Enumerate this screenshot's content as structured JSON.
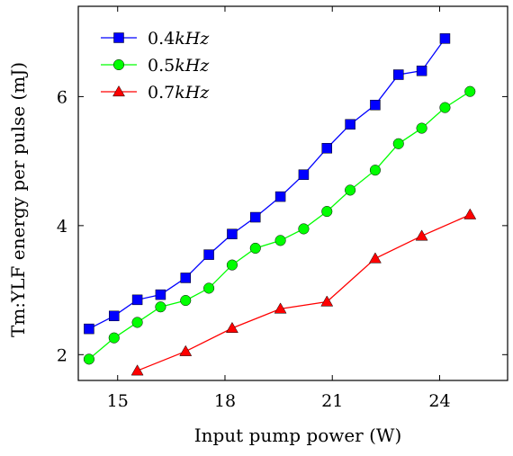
{
  "chart_data": {
    "type": "line",
    "xlabel": "Input pump power (W)",
    "ylabel": "Tm:YLF energy per pulse (mJ)",
    "xlim": [
      13.9,
      25.9
    ],
    "ylim": [
      1.6,
      7.4
    ],
    "xticks": [
      15,
      18,
      21,
      24
    ],
    "yticks": [
      2,
      4,
      6
    ],
    "xtick_labels": [
      "15",
      "18",
      "21",
      "24"
    ],
    "ytick_labels": [
      "2",
      "4",
      "6"
    ],
    "grid": false,
    "legend_position": "top-left",
    "series": [
      {
        "name": "0.4kHz",
        "color": "#0000ff",
        "marker": "square",
        "x": [
          14.2,
          14.9,
          15.55,
          16.2,
          16.9,
          17.55,
          18.2,
          18.85,
          19.55,
          20.2,
          20.85,
          21.5,
          22.2,
          22.85,
          23.5,
          24.15
        ],
        "y": [
          2.4,
          2.6,
          2.85,
          2.93,
          3.19,
          3.55,
          3.87,
          4.13,
          4.45,
          4.79,
          5.2,
          5.57,
          5.87,
          6.34,
          6.4,
          6.9
        ]
      },
      {
        "name": "0.5kHz",
        "color": "#00ff00",
        "marker": "circle",
        "x": [
          14.2,
          14.9,
          15.55,
          16.2,
          16.9,
          17.55,
          18.2,
          18.85,
          19.55,
          20.2,
          20.85,
          21.5,
          22.2,
          22.85,
          23.5,
          24.15,
          24.85
        ],
        "y": [
          1.93,
          2.26,
          2.5,
          2.74,
          2.84,
          3.03,
          3.39,
          3.65,
          3.77,
          3.95,
          4.22,
          4.55,
          4.86,
          5.27,
          5.51,
          5.83,
          6.08
        ]
      },
      {
        "name": "0.7kHz",
        "color": "#ff0000",
        "marker": "triangle",
        "x": [
          15.55,
          16.9,
          18.2,
          19.55,
          20.85,
          22.2,
          23.5,
          24.85
        ],
        "y": [
          1.75,
          2.05,
          2.41,
          2.71,
          2.82,
          3.49,
          3.84,
          4.17
        ]
      }
    ],
    "legend": [
      {
        "label_main": "0.4",
        "label_unit": "kHz"
      },
      {
        "label_main": "0.5",
        "label_unit": "kHz"
      },
      {
        "label_main": "0.7",
        "label_unit": "kHz"
      }
    ]
  }
}
